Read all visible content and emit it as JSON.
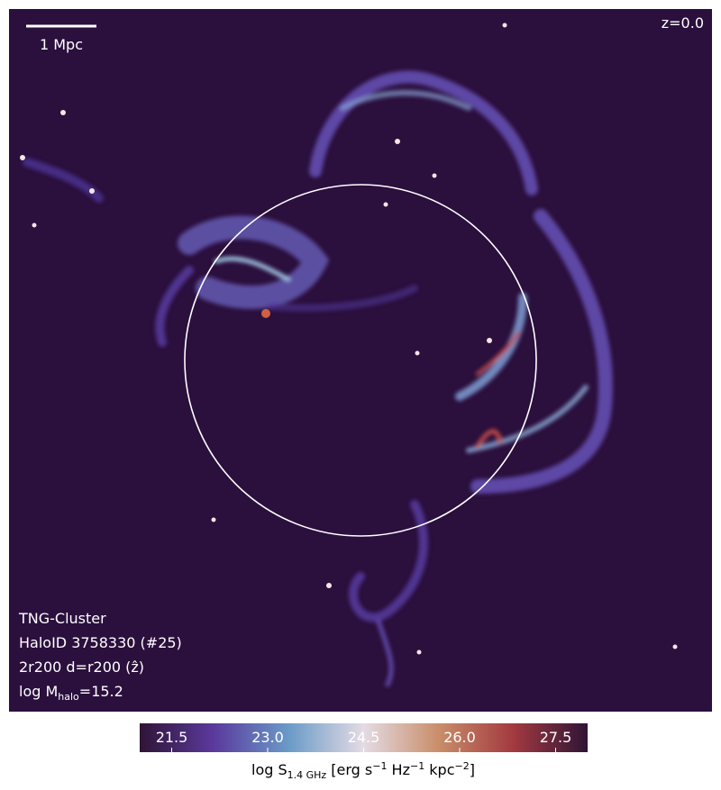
{
  "map": {
    "scale_bar": "1 Mpc",
    "redshift": "z=0.0",
    "labels": [
      [
        "TNG-Cluster"
      ],
      [
        "HaloID 3758330 (#25)"
      ],
      [
        "2r200 d=r200 (ẑ)"
      ],
      [
        "log M",
        "halo",
        "=15.2"
      ]
    ]
  },
  "colorbar": {
    "label": [
      "log S",
      "1.4 GHz",
      " [erg s",
      "−1",
      " Hz",
      "−1",
      " kpc",
      "−2",
      "]"
    ],
    "lim": [
      21,
      28
    ],
    "ticks": [
      21.5,
      {
        "value": 23,
        "label": "23.0"
      },
      24.5,
      {
        "value": 26,
        "label": "26.0"
      },
      27.5
    ],
    "colors": [
      "#2f1436",
      "#5b3a9e",
      "#6a9bc8",
      "#e4dbe4",
      "#c98e6a",
      "#a33a40",
      "#2f1436"
    ]
  }
}
